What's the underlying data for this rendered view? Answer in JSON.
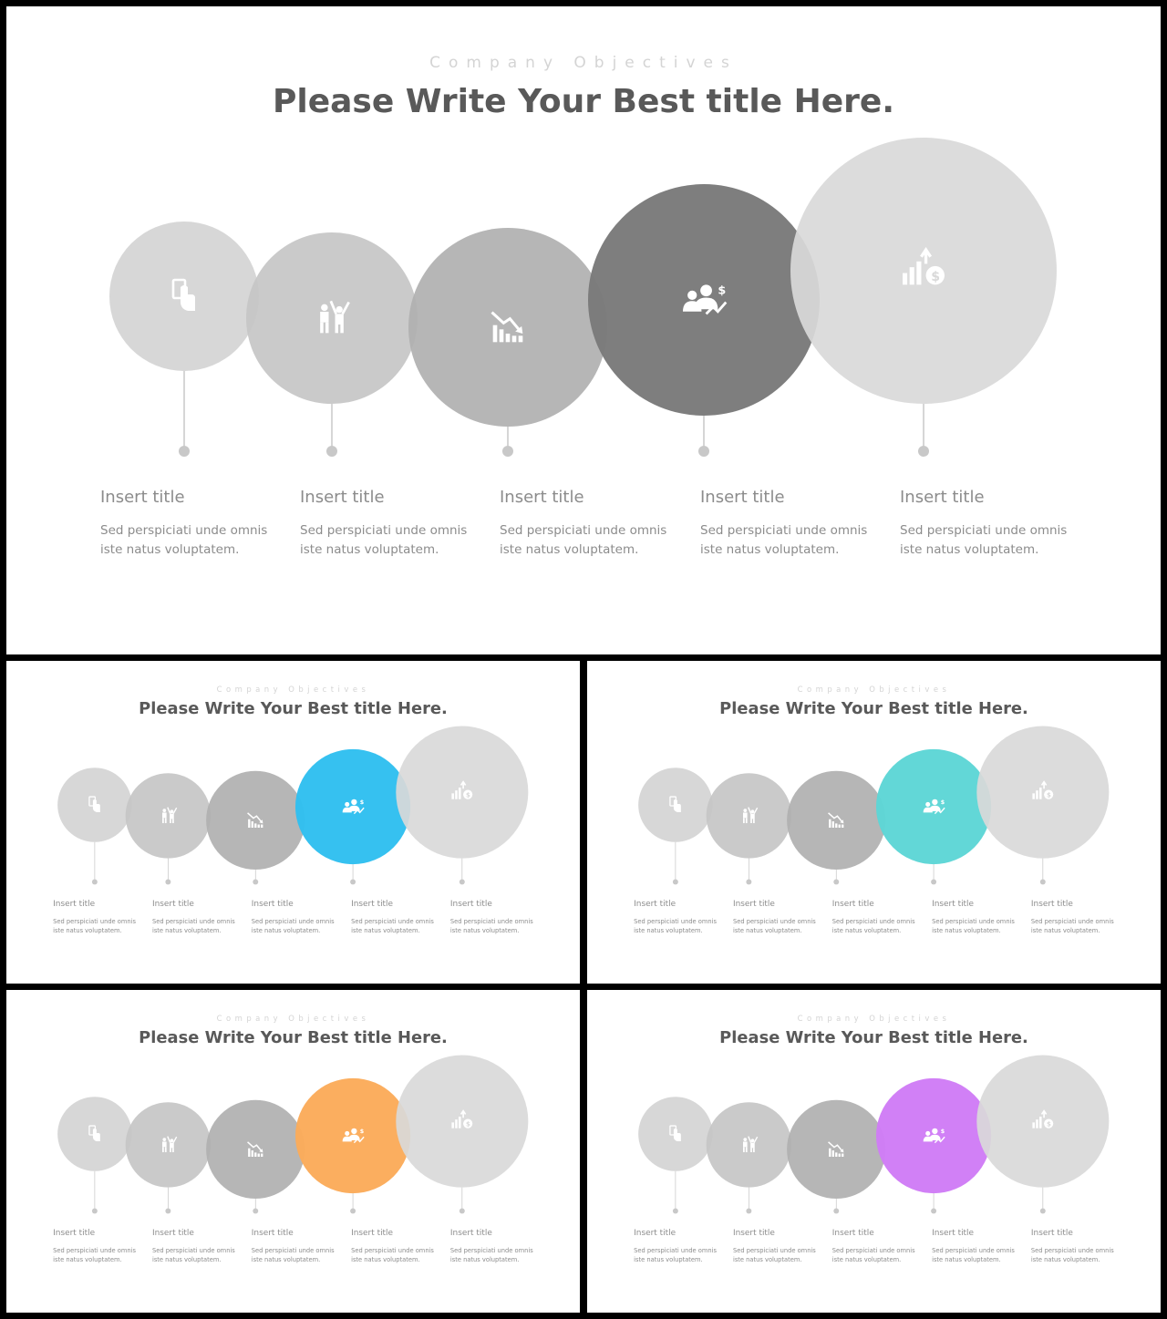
{
  "subtitle": "Company Objectives",
  "title": "Please Write Your Best title Here.",
  "items": [
    {
      "title": "Insert title",
      "text": "Sed perspiciati unde omnis iste natus voluptatem.",
      "icon": "hand-card-icon"
    },
    {
      "title": "Insert title",
      "text": "Sed perspiciati unde omnis iste natus voluptatem.",
      "icon": "people-celebrate-icon"
    },
    {
      "title": "Insert title",
      "text": "Sed perspiciati unde omnis iste natus voluptatem.",
      "icon": "chart-decline-icon"
    },
    {
      "title": "Insert title",
      "text": "Sed perspiciati unde omnis iste natus voluptatem.",
      "icon": "team-money-icon"
    },
    {
      "title": "Insert title",
      "text": "Sed perspiciati unde omnis iste natus voluptatem.",
      "icon": "growth-dollar-icon"
    }
  ],
  "colors": {
    "circle1": "#d4d4d4",
    "circle2": "#c6c6c6",
    "circle3": "#b0b0b0",
    "circle5": "#d9d9d9",
    "main_accent": "#7a7a7a",
    "variant_accents": [
      "#2fbff0",
      "#5dd6d6",
      "#fbab5a",
      "#d07cf6"
    ]
  }
}
